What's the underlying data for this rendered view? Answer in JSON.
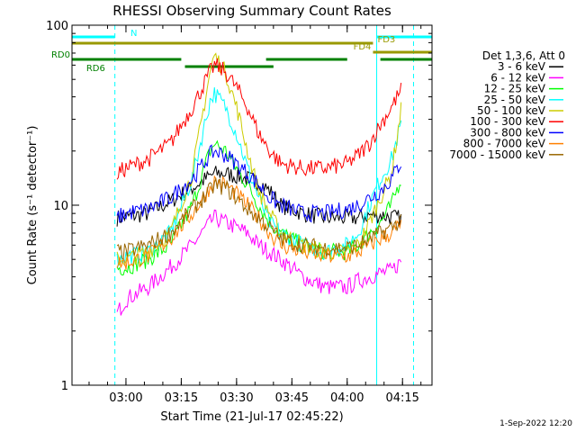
{
  "chart_data": {
    "type": "line",
    "title": "RHESSI Observing Summary Count Rates",
    "xlabel": "Start Time (21-Jul-17 02:45:22)",
    "ylabel": "Count Rate (s⁻¹ detector⁻¹)",
    "y_scale": "log",
    "ylim": [
      1,
      100
    ],
    "xlim": [
      "02:45:22",
      "04:23:00"
    ],
    "x_ticks": [
      "03:00",
      "03:15",
      "03:30",
      "03:45",
      "04:00",
      "04:15"
    ],
    "y_ticks": [
      "1",
      "10",
      "100"
    ],
    "timestamp": "1-Sep-2022 12:20",
    "legend": {
      "position": "right",
      "header": "Det 1,3,6, Att 0",
      "entries": [
        {
          "label": "3 - 6 keV",
          "color": "#000000"
        },
        {
          "label": "6 - 12 keV",
          "color": "#ff00ff"
        },
        {
          "label": "12 - 25 keV",
          "color": "#00ff00"
        },
        {
          "label": "25 - 50 keV",
          "color": "#00ffff"
        },
        {
          "label": "50 - 100 keV",
          "color": "#cccc00"
        },
        {
          "label": "100 - 300 keV",
          "color": "#ff0000"
        },
        {
          "label": "300 - 800 keV",
          "color": "#0000ff"
        },
        {
          "label": "800 - 7000 keV",
          "color": "#ff8000"
        },
        {
          "label": "7000 - 15000 keV",
          "color": "#996600"
        }
      ]
    },
    "flags": [
      {
        "label": "N",
        "color": "#00ffff",
        "segments": [
          [
            "02:45:22",
            "02:57:00"
          ],
          [
            "04:08:00",
            "04:23:00"
          ]
        ]
      },
      {
        "label": "FD3",
        "color": "#999900",
        "segments": [
          [
            "02:45:22",
            "04:07:00"
          ]
        ]
      },
      {
        "label": "FD4",
        "color": "#999900",
        "segments": [
          [
            "04:07:00",
            "04:23:00"
          ]
        ]
      },
      {
        "label": "RD0",
        "color": "#008000",
        "segments": [
          [
            "02:45:22",
            "03:15:00"
          ],
          [
            "03:38:00",
            "04:00:00"
          ],
          [
            "04:09:00",
            "04:23:00"
          ]
        ]
      },
      {
        "label": "RD6",
        "color": "#008000",
        "segments": [
          [
            "03:16:00",
            "03:40:00"
          ]
        ]
      }
    ],
    "x_hours": [
      2.756,
      2.8,
      2.9,
      2.96,
      3.0,
      3.1,
      3.2,
      3.3,
      3.38,
      3.4,
      3.45,
      3.5,
      3.55,
      3.6,
      3.65,
      3.7,
      3.8,
      3.9,
      4.0,
      4.05,
      4.1,
      4.15,
      4.2,
      4.25,
      4.28
    ],
    "series": [
      {
        "name": "3 - 6 keV",
        "color": "#000000",
        "values": [
          null,
          null,
          null,
          8.5,
          8.6,
          9.0,
          10.5,
          12.5,
          14.5,
          15.0,
          15.0,
          14.5,
          14.0,
          13.5,
          12.0,
          10.0,
          9.0,
          8.5,
          8.5,
          8.5,
          8.8,
          8.8,
          8.6,
          8.4,
          null
        ]
      },
      {
        "name": "6 - 12 keV",
        "color": "#ff00ff",
        "values": [
          null,
          null,
          null,
          2.5,
          3.0,
          3.5,
          4.5,
          6.0,
          8.0,
          8.5,
          8.0,
          7.5,
          7.0,
          6.0,
          5.5,
          5.0,
          4.0,
          3.5,
          3.5,
          3.8,
          4.0,
          4.2,
          4.3,
          5.0,
          null
        ]
      },
      {
        "name": "12 - 25 keV",
        "color": "#00ff00",
        "values": [
          null,
          null,
          null,
          4.5,
          4.5,
          5.0,
          6.0,
          10.0,
          20.0,
          22.0,
          20.0,
          16.0,
          13.0,
          10.0,
          8.0,
          7.0,
          6.0,
          5.5,
          5.5,
          6.0,
          7.0,
          8.0,
          10.0,
          15.0,
          null
        ]
      },
      {
        "name": "25 - 50 keV",
        "color": "#00ffff",
        "values": [
          null,
          null,
          null,
          5.0,
          5.2,
          5.5,
          7.0,
          14.0,
          38.0,
          42.0,
          35.0,
          25.0,
          16.0,
          11.0,
          8.0,
          7.0,
          6.0,
          5.5,
          6.0,
          7.0,
          10.0,
          14.0,
          18.0,
          30.0,
          null
        ]
      },
      {
        "name": "50 - 100 keV",
        "color": "#cccc00",
        "values": [
          null,
          null,
          null,
          5.0,
          5.0,
          5.5,
          7.0,
          15.0,
          55.0,
          68.0,
          55.0,
          35.0,
          20.0,
          12.0,
          9.0,
          7.0,
          6.0,
          5.5,
          5.5,
          6.0,
          8.0,
          11.0,
          15.0,
          38.0,
          null
        ]
      },
      {
        "name": "100 - 300 keV",
        "color": "#ff0000",
        "values": [
          null,
          null,
          null,
          15.0,
          16.0,
          18.0,
          22.0,
          35.0,
          55.0,
          60.0,
          55.0,
          45.0,
          35.0,
          25.0,
          20.0,
          17.0,
          16.0,
          16.0,
          17.0,
          19.0,
          22.0,
          28.0,
          35.0,
          45.0,
          null
        ]
      },
      {
        "name": "300 - 800 keV",
        "color": "#0000ff",
        "values": [
          null,
          null,
          null,
          8.5,
          9.0,
          9.5,
          11.0,
          14.0,
          19.0,
          20.0,
          19.0,
          17.0,
          15.0,
          13.0,
          11.0,
          10.0,
          9.0,
          9.0,
          9.5,
          10.0,
          11.0,
          12.0,
          14.0,
          18.0,
          null
        ]
      },
      {
        "name": "800 - 7000 keV",
        "color": "#ff8000",
        "values": [
          null,
          null,
          null,
          4.8,
          4.8,
          5.2,
          6.5,
          9.0,
          12.5,
          13.5,
          13.0,
          11.5,
          10.0,
          8.5,
          7.0,
          6.0,
          5.5,
          5.2,
          5.2,
          5.5,
          6.0,
          6.5,
          7.0,
          8.0,
          null
        ]
      },
      {
        "name": "7000 - 15000 keV",
        "color": "#996600",
        "values": [
          null,
          null,
          null,
          5.5,
          5.5,
          6.0,
          7.0,
          9.5,
          12.0,
          13.0,
          12.5,
          11.0,
          9.5,
          8.5,
          7.5,
          6.5,
          6.0,
          5.8,
          5.8,
          6.0,
          6.5,
          7.0,
          7.5,
          8.5,
          null
        ]
      }
    ]
  }
}
